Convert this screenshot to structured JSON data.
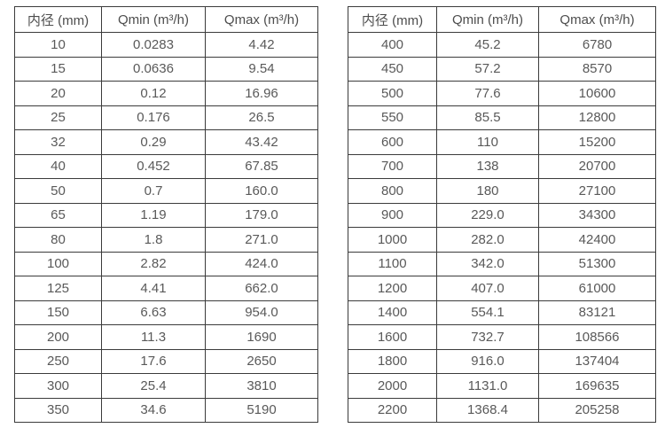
{
  "page": {
    "background": "#ffffff",
    "border_color": "#3b3b3b",
    "text_color": "#595959",
    "header_text_color": "#4d4d4d"
  },
  "tables": [
    {
      "name": "small-diameters",
      "headers": [
        {
          "id": "inner-diameter",
          "label": "内径 (mm)"
        },
        {
          "id": "qmin",
          "label": "Qmin (m³/h)"
        },
        {
          "id": "qmax",
          "label": "Qmax (m³/h)"
        }
      ],
      "rows": [
        [
          "10",
          "0.0283",
          "4.42"
        ],
        [
          "15",
          "0.0636",
          "9.54"
        ],
        [
          "20",
          "0.12",
          "16.96"
        ],
        [
          "25",
          "0.176",
          "26.5"
        ],
        [
          "32",
          "0.29",
          "43.42"
        ],
        [
          "40",
          "0.452",
          "67.85"
        ],
        [
          "50",
          "0.7",
          "160.0"
        ],
        [
          "65",
          "1.19",
          "179.0"
        ],
        [
          "80",
          "1.8",
          "271.0"
        ],
        [
          "100",
          "2.82",
          "424.0"
        ],
        [
          "125",
          "4.41",
          "662.0"
        ],
        [
          "150",
          "6.63",
          "954.0"
        ],
        [
          "200",
          "11.3",
          "1690"
        ],
        [
          "250",
          "17.6",
          "2650"
        ],
        [
          "300",
          "25.4",
          "3810"
        ],
        [
          "350",
          "34.6",
          "5190"
        ]
      ]
    },
    {
      "name": "large-diameters",
      "headers": [
        {
          "id": "inner-diameter",
          "label": "内径 (mm)"
        },
        {
          "id": "qmin",
          "label": "Qmin (m³/h)"
        },
        {
          "id": "qmax",
          "label": "Qmax (m³/h)"
        }
      ],
      "rows": [
        [
          "400",
          "45.2",
          "6780"
        ],
        [
          "450",
          "57.2",
          "8570"
        ],
        [
          "500",
          "77.6",
          "10600"
        ],
        [
          "550",
          "85.5",
          "12800"
        ],
        [
          "600",
          "110",
          "15200"
        ],
        [
          "700",
          "138",
          "20700"
        ],
        [
          "800",
          "180",
          "27100"
        ],
        [
          "900",
          "229.0",
          "34300"
        ],
        [
          "1000",
          "282.0",
          "42400"
        ],
        [
          "1100",
          "342.0",
          "51300"
        ],
        [
          "1200",
          "407.0",
          "61000"
        ],
        [
          "1400",
          "554.1",
          "83121"
        ],
        [
          "1600",
          "732.7",
          "108566"
        ],
        [
          "1800",
          "916.0",
          "137404"
        ],
        [
          "2000",
          "1131.0",
          "169635"
        ],
        [
          "2200",
          "1368.4",
          "205258"
        ]
      ]
    }
  ]
}
